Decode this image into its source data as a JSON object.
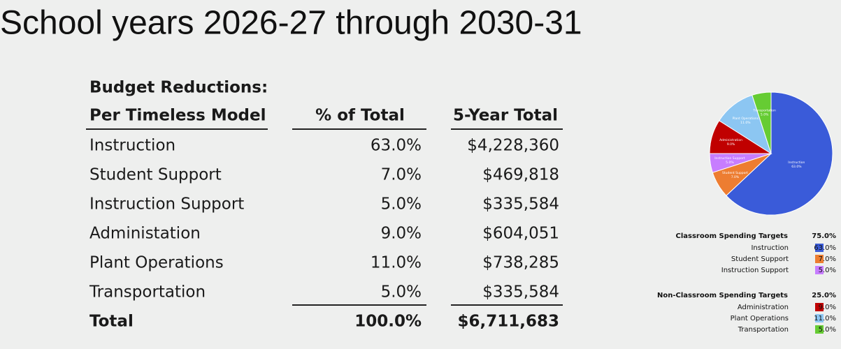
{
  "title": "School years 2026-27 through 2030-31",
  "table": {
    "caption": "Budget Reductions:",
    "header": [
      "Per Timeless Model",
      "% of Total",
      "5-Year Total"
    ],
    "rows": [
      [
        "Instruction",
        "63.0%",
        "$4,228,360"
      ],
      [
        "Student Support",
        "7.0%",
        "$469,818"
      ],
      [
        "Instruction Support",
        "5.0%",
        "$335,584"
      ],
      [
        "Administation",
        "9.0%",
        "$604,051"
      ],
      [
        "Plant Operations",
        "11.0%",
        "$738,285"
      ],
      [
        "Transportation",
        "5.0%",
        "$335,584"
      ]
    ],
    "total": [
      "Total",
      "100.0%",
      "$6,711,683"
    ]
  },
  "chart_data": {
    "type": "pie",
    "groups": [
      {
        "name": "Classroom Spending Targets",
        "value": 75,
        "value_label": "75.0%",
        "categories": [
          "Instruction",
          "Student Support",
          "Instruction Support"
        ],
        "values": [
          63,
          7,
          5
        ],
        "value_labels": [
          "63.0%",
          "7.0%",
          "5.0%"
        ],
        "colors": [
          "#3a5bd9",
          "#ed7d31",
          "#c77dff"
        ]
      },
      {
        "name": "Non-Classroom Spending Targets",
        "value": 25,
        "value_label": "25.0%",
        "categories": [
          "Administration",
          "Plant Operations",
          "Transportation"
        ],
        "values": [
          9,
          11,
          5
        ],
        "value_labels": [
          "9.0%",
          "11.0%",
          "5.0%"
        ],
        "colors": [
          "#c00000",
          "#8cc6f2",
          "#66cc33"
        ]
      }
    ]
  }
}
